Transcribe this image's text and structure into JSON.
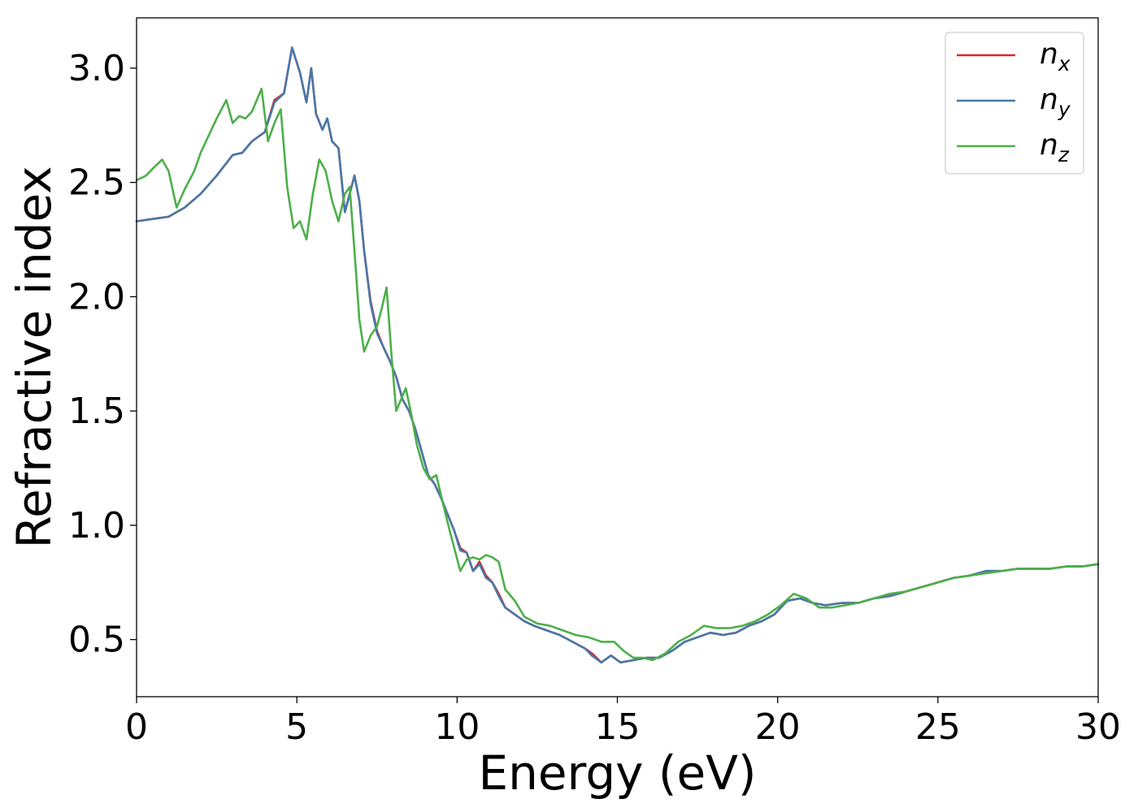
{
  "chart_data": {
    "type": "line",
    "title": "",
    "xlabel": "Energy (eV)",
    "ylabel": "Refractive index",
    "xlim": [
      0,
      30
    ],
    "ylim": [
      0.25,
      3.22
    ],
    "xticks": [
      0,
      5,
      10,
      15,
      20,
      25,
      30
    ],
    "xtick_labels": [
      "0",
      "5",
      "10",
      "15",
      "20",
      "25",
      "30"
    ],
    "yticks": [
      0.5,
      1.0,
      1.5,
      2.0,
      2.5,
      3.0
    ],
    "ytick_labels": [
      "0.5",
      "1.0",
      "1.5",
      "2.0",
      "2.5",
      "3.0"
    ],
    "grid": false,
    "legend_position": "top-right",
    "series": [
      {
        "name": "n",
        "subscript": "x",
        "color": "#d62728",
        "x": [
          0,
          0.5,
          1,
          1.5,
          2,
          2.5,
          3,
          3.3,
          3.6,
          4,
          4.3,
          4.6,
          4.85,
          5.1,
          5.3,
          5.45,
          5.6,
          5.8,
          5.95,
          6.1,
          6.3,
          6.5,
          6.65,
          6.8,
          6.95,
          7.1,
          7.3,
          7.5,
          7.7,
          7.9,
          8.1,
          8.3,
          8.5,
          8.7,
          8.9,
          9.1,
          9.3,
          9.5,
          9.7,
          9.9,
          10.1,
          10.3,
          10.5,
          10.7,
          10.9,
          11.1,
          11.3,
          11.5,
          11.8,
          12.1,
          12.4,
          12.8,
          13.2,
          13.6,
          14,
          14.2,
          14.5,
          14.8,
          15.1,
          15.5,
          15.9,
          16.3,
          16.7,
          17.1,
          17.5,
          17.9,
          18.3,
          18.7,
          19.1,
          19.5,
          19.9,
          20.3,
          20.7,
          21.1,
          21.5,
          22,
          22.5,
          23,
          23.5,
          24,
          24.5,
          25,
          25.5,
          26,
          26.5,
          27,
          27.5,
          28,
          28.5,
          29,
          29.5,
          30
        ],
        "y": [
          2.33,
          2.34,
          2.35,
          2.39,
          2.45,
          2.53,
          2.62,
          2.63,
          2.68,
          2.72,
          2.86,
          2.89,
          3.09,
          2.98,
          2.85,
          3.0,
          2.8,
          2.73,
          2.78,
          2.68,
          2.65,
          2.37,
          2.45,
          2.53,
          2.42,
          2.2,
          1.98,
          1.85,
          1.78,
          1.72,
          1.65,
          1.55,
          1.5,
          1.42,
          1.32,
          1.22,
          1.18,
          1.12,
          1.05,
          0.98,
          0.9,
          0.88,
          0.8,
          0.84,
          0.78,
          0.75,
          0.7,
          0.64,
          0.61,
          0.58,
          0.56,
          0.54,
          0.52,
          0.49,
          0.46,
          0.44,
          0.4,
          0.43,
          0.4,
          0.41,
          0.42,
          0.42,
          0.45,
          0.49,
          0.51,
          0.53,
          0.52,
          0.53,
          0.56,
          0.58,
          0.61,
          0.67,
          0.68,
          0.66,
          0.65,
          0.66,
          0.66,
          0.68,
          0.69,
          0.71,
          0.73,
          0.75,
          0.77,
          0.78,
          0.8,
          0.8,
          0.81,
          0.81,
          0.81,
          0.82,
          0.82,
          0.83
        ]
      },
      {
        "name": "n",
        "subscript": "y",
        "color": "#4878a8",
        "x": [
          0,
          0.5,
          1,
          1.5,
          2,
          2.5,
          3,
          3.3,
          3.6,
          4,
          4.3,
          4.6,
          4.85,
          5.1,
          5.3,
          5.45,
          5.6,
          5.8,
          5.95,
          6.1,
          6.3,
          6.5,
          6.65,
          6.8,
          6.95,
          7.1,
          7.3,
          7.5,
          7.7,
          7.9,
          8.1,
          8.3,
          8.5,
          8.7,
          8.9,
          9.1,
          9.3,
          9.5,
          9.7,
          9.9,
          10.1,
          10.3,
          10.5,
          10.7,
          10.9,
          11.1,
          11.3,
          11.5,
          11.8,
          12.1,
          12.4,
          12.8,
          13.2,
          13.6,
          14,
          14.2,
          14.5,
          14.8,
          15.1,
          15.5,
          15.9,
          16.3,
          16.7,
          17.1,
          17.5,
          17.9,
          18.3,
          18.7,
          19.1,
          19.5,
          19.9,
          20.3,
          20.7,
          21.1,
          21.5,
          22,
          22.5,
          23,
          23.5,
          24,
          24.5,
          25,
          25.5,
          26,
          26.5,
          27,
          27.5,
          28,
          28.5,
          29,
          29.5,
          30
        ],
        "y": [
          2.33,
          2.34,
          2.35,
          2.39,
          2.45,
          2.53,
          2.62,
          2.63,
          2.68,
          2.72,
          2.85,
          2.89,
          3.09,
          2.98,
          2.85,
          3.0,
          2.8,
          2.73,
          2.78,
          2.68,
          2.65,
          2.37,
          2.45,
          2.53,
          2.42,
          2.2,
          1.97,
          1.84,
          1.78,
          1.72,
          1.65,
          1.55,
          1.5,
          1.42,
          1.32,
          1.22,
          1.18,
          1.12,
          1.05,
          0.98,
          0.89,
          0.88,
          0.8,
          0.83,
          0.77,
          0.75,
          0.69,
          0.64,
          0.61,
          0.58,
          0.56,
          0.54,
          0.52,
          0.49,
          0.46,
          0.43,
          0.4,
          0.43,
          0.4,
          0.41,
          0.42,
          0.42,
          0.45,
          0.49,
          0.51,
          0.53,
          0.52,
          0.53,
          0.56,
          0.58,
          0.61,
          0.67,
          0.68,
          0.66,
          0.65,
          0.66,
          0.66,
          0.68,
          0.69,
          0.71,
          0.73,
          0.75,
          0.77,
          0.78,
          0.8,
          0.8,
          0.81,
          0.81,
          0.81,
          0.82,
          0.82,
          0.83
        ]
      },
      {
        "name": "n",
        "subscript": "z",
        "color": "#4daf4a",
        "x": [
          0,
          0.3,
          0.5,
          0.8,
          1,
          1.25,
          1.5,
          1.8,
          2,
          2.3,
          2.5,
          2.8,
          3,
          3.2,
          3.4,
          3.6,
          3.9,
          4.1,
          4.3,
          4.5,
          4.7,
          4.9,
          5.1,
          5.3,
          5.5,
          5.7,
          5.9,
          6.1,
          6.3,
          6.5,
          6.65,
          6.8,
          6.95,
          7.1,
          7.3,
          7.5,
          7.65,
          7.8,
          7.95,
          8.1,
          8.25,
          8.4,
          8.55,
          8.75,
          8.95,
          9.15,
          9.35,
          9.55,
          9.8,
          10.1,
          10.3,
          10.5,
          10.7,
          10.9,
          11.1,
          11.3,
          11.5,
          11.8,
          12.1,
          12.5,
          12.9,
          13.3,
          13.7,
          14.1,
          14.5,
          14.9,
          15.2,
          15.5,
          15.8,
          16.1,
          16.5,
          16.9,
          17.3,
          17.7,
          18.1,
          18.5,
          18.9,
          19.3,
          19.7,
          20.1,
          20.5,
          20.9,
          21.3,
          21.7,
          22.1,
          22.5,
          23,
          23.5,
          24,
          24.5,
          25,
          25.5,
          26,
          26.5,
          27,
          27.5,
          28,
          28.5,
          29,
          29.5,
          30
        ],
        "y": [
          2.51,
          2.53,
          2.56,
          2.6,
          2.55,
          2.39,
          2.47,
          2.55,
          2.63,
          2.72,
          2.78,
          2.86,
          2.76,
          2.79,
          2.78,
          2.81,
          2.91,
          2.68,
          2.76,
          2.82,
          2.48,
          2.3,
          2.33,
          2.25,
          2.45,
          2.6,
          2.55,
          2.42,
          2.33,
          2.45,
          2.48,
          2.2,
          1.9,
          1.76,
          1.83,
          1.87,
          1.95,
          2.04,
          1.75,
          1.5,
          1.55,
          1.6,
          1.5,
          1.35,
          1.25,
          1.2,
          1.22,
          1.1,
          0.96,
          0.8,
          0.85,
          0.86,
          0.85,
          0.87,
          0.86,
          0.84,
          0.72,
          0.67,
          0.6,
          0.57,
          0.56,
          0.54,
          0.52,
          0.51,
          0.49,
          0.49,
          0.45,
          0.42,
          0.42,
          0.41,
          0.44,
          0.49,
          0.52,
          0.56,
          0.55,
          0.55,
          0.56,
          0.58,
          0.61,
          0.65,
          0.7,
          0.68,
          0.64,
          0.64,
          0.65,
          0.66,
          0.68,
          0.7,
          0.71,
          0.73,
          0.75,
          0.77,
          0.78,
          0.79,
          0.8,
          0.81,
          0.81,
          0.81,
          0.82,
          0.82,
          0.83
        ]
      }
    ]
  }
}
